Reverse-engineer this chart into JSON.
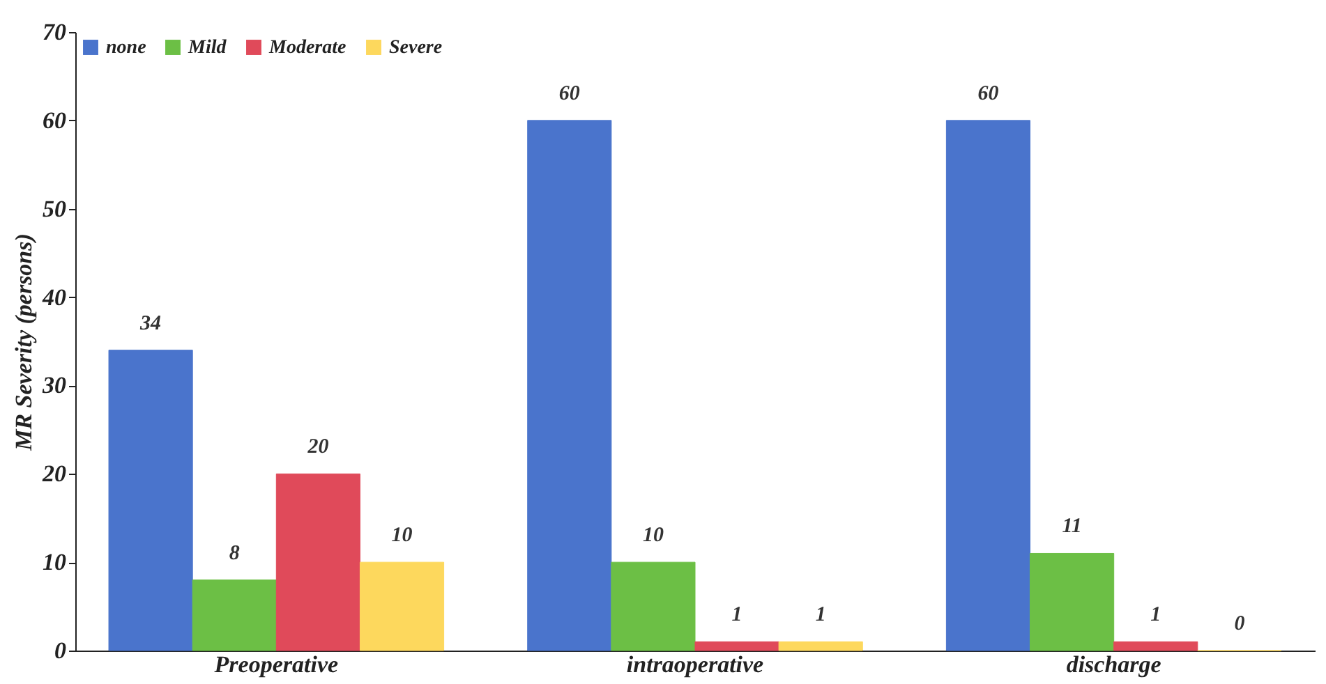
{
  "chart_data": {
    "type": "bar",
    "ylabel": "MR Severity (persons)",
    "categories": [
      "Preoperative",
      "intraoperative",
      "discharge"
    ],
    "series": [
      {
        "name": "none",
        "color": "#4a74cc",
        "values": [
          34,
          60,
          60
        ]
      },
      {
        "name": "Mild",
        "color": "#6cbf45",
        "values": [
          8,
          10,
          11
        ]
      },
      {
        "name": "Moderate",
        "color": "#e04a5a",
        "values": [
          20,
          1,
          1
        ]
      },
      {
        "name": "Severe",
        "color": "#fdd85d",
        "values": [
          10,
          1,
          0
        ]
      }
    ],
    "ylim": [
      0,
      70
    ],
    "yticks": [
      0,
      10,
      20,
      30,
      40,
      50,
      60,
      70
    ],
    "data_labels": true,
    "legend": "top left",
    "grid": false
  }
}
